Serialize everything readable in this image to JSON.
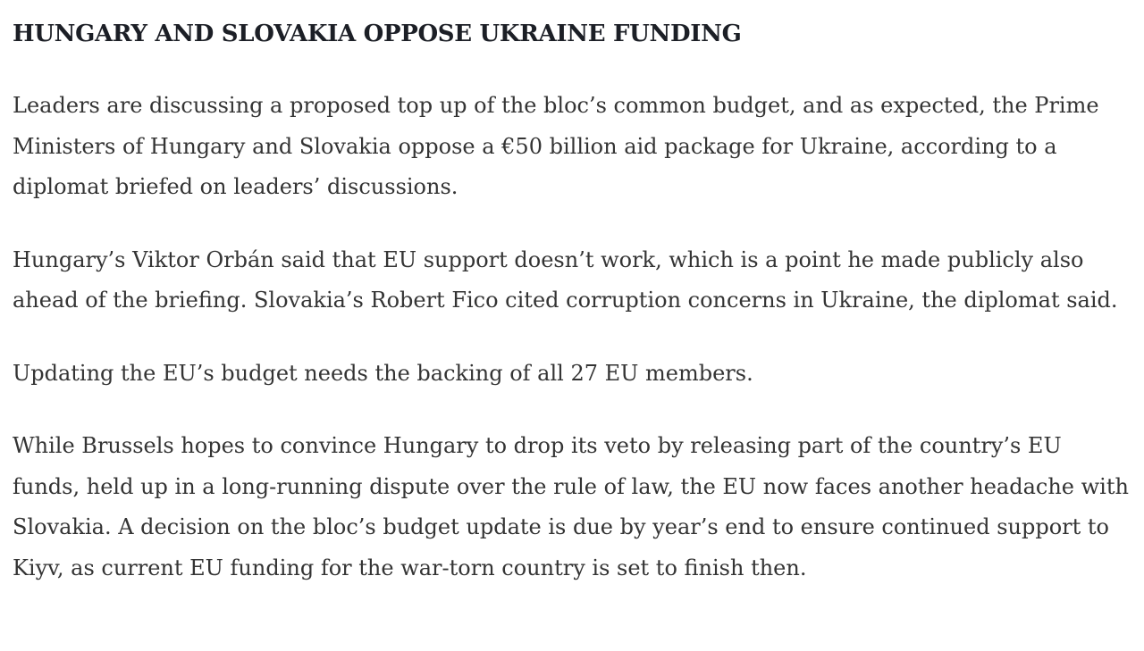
{
  "page": {
    "background_color": "#ffffff",
    "headline_color": "#1c1f26",
    "body_text_color": "#343434"
  },
  "article": {
    "headline": "HUNGARY AND SLOVAKIA OPPOSE UKRAINE FUNDING",
    "paragraphs": [
      "Leaders are discussing a proposed top up of the bloc’s common budget, and as expected, the Prime Ministers of Hungary and Slovakia oppose a €50 billion aid package for Ukraine, according to a diplomat briefed on leaders’ discussions.",
      "Hungary’s Viktor Orbán said that EU support doesn’t work, which is a point he made publicly also ahead of the briefing. Slovakia’s Robert Fico cited corruption concerns in Ukraine, the diplomat said.",
      "Updating the EU’s budget needs the backing of all 27 EU members.",
      "While Brussels hopes to convince Hungary to drop its veto by releasing part of the country’s EU funds, held up in a long-running dispute over the rule of law, the EU now faces another headache with Slovakia. A decision on the bloc’s budget update is due by year’s end to ensure continued support to Kiyv, as current EU funding for the war-torn country is set to finish then."
    ]
  }
}
